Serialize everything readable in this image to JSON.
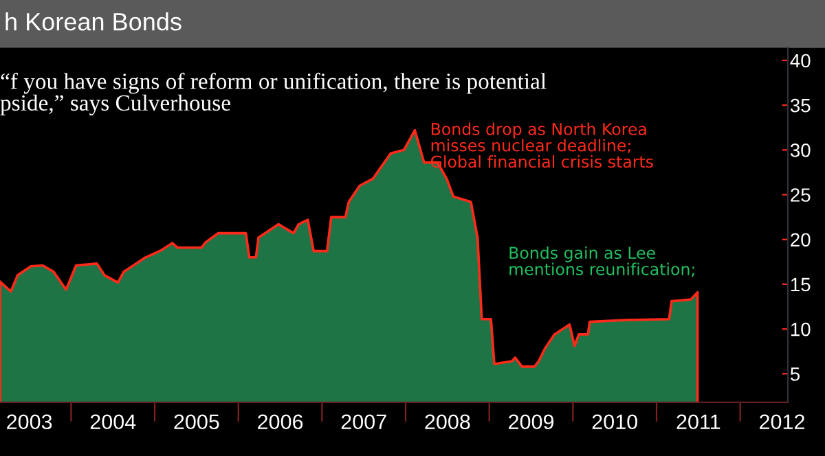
{
  "chart_data": {
    "type": "area",
    "title": "h Korean Bonds",
    "annotations": [
      "“f you have signs of reform or unification, there is potential\npside,” says Culverhouse",
      {
        "text": "Bonds drop as North Korea\nmisses nuclear deadline;\nGlobal financial crisis starts",
        "x": 2008.11,
        "y": 32.2
      },
      "Bonds gain as Lee\nmentions reunification;"
    ],
    "x": [
      2003.15,
      2003.28,
      2003.36,
      2003.52,
      2003.66,
      2003.79,
      2003.94,
      2004.06,
      2004.31,
      2004.4,
      2004.56,
      2004.63,
      2004.89,
      2005.08,
      2005.21,
      2005.27,
      2005.56,
      2005.61,
      2005.76,
      2006.09,
      2006.13,
      2006.21,
      2006.24,
      2006.48,
      2006.66,
      2006.72,
      2006.83,
      2006.9,
      2007.06,
      2007.11,
      2007.28,
      2007.32,
      2007.45,
      2007.61,
      2007.82,
      2007.98,
      2008.11,
      2008.22,
      2008.38,
      2008.49,
      2008.57,
      2008.78,
      2008.86,
      2008.91,
      2009.02,
      2009.06,
      2009.27,
      2009.31,
      2009.39,
      2009.54,
      2009.59,
      2009.67,
      2009.78,
      2009.96,
      2010.02,
      2010.07,
      2010.18,
      2010.2,
      2010.63,
      2011.15,
      2011.18,
      2011.41,
      2011.49
    ],
    "series": [
      {
        "color": "#1e7444",
        "values": [
          15.3,
          14.2,
          16.0,
          17.0,
          17.1,
          16.4,
          14.4,
          17.1,
          17.3,
          16.0,
          15.2,
          16.4,
          18.0,
          18.8,
          19.6,
          19.1,
          19.1,
          19.7,
          20.7,
          20.7,
          18.0,
          18.0,
          20.2,
          21.7,
          20.7,
          21.7,
          22.2,
          18.7,
          18.7,
          22.5,
          22.5,
          24.2,
          26.0,
          26.8,
          29.6,
          30.0,
          32.2,
          28.6,
          28.6,
          26.8,
          24.8,
          24.2,
          20.2,
          11.1,
          11.1,
          6.1,
          6.4,
          6.8,
          5.8,
          5.8,
          6.4,
          7.9,
          9.4,
          10.5,
          8.1,
          9.4,
          9.4,
          10.8,
          11.0,
          11.1,
          13.1,
          13.3,
          14.1
        ]
      }
    ],
    "xlim": [
      2003.15,
      2012.57
    ],
    "ylim": [
      1.8,
      41.4
    ],
    "xticks": [
      {
        "value": 2003.5,
        "label": "2003"
      },
      {
        "value": 2004,
        "label": null
      },
      {
        "value": 2004.5,
        "label": "2004"
      },
      {
        "value": 2005,
        "label": null
      },
      {
        "value": 2005.5,
        "label": "2005"
      },
      {
        "value": 2006,
        "label": null
      },
      {
        "value": 2006.5,
        "label": "2006"
      },
      {
        "value": 2007,
        "label": null
      },
      {
        "value": 2007.5,
        "label": "2007"
      },
      {
        "value": 2008,
        "label": null
      },
      {
        "value": 2008.5,
        "label": "2008"
      },
      {
        "value": 2009,
        "label": null
      },
      {
        "value": 2009.5,
        "label": "2009"
      },
      {
        "value": 2010,
        "label": null
      },
      {
        "value": 2010.5,
        "label": "2010"
      },
      {
        "value": 2011,
        "label": null
      },
      {
        "value": 2011.5,
        "label": "2011"
      },
      {
        "value": 2012,
        "label": null
      },
      {
        "value": 2012.5,
        "label": "2012"
      }
    ],
    "yticks": [
      5,
      10,
      15,
      20,
      25,
      30,
      35,
      40
    ],
    "grid": false,
    "legend": false
  }
}
